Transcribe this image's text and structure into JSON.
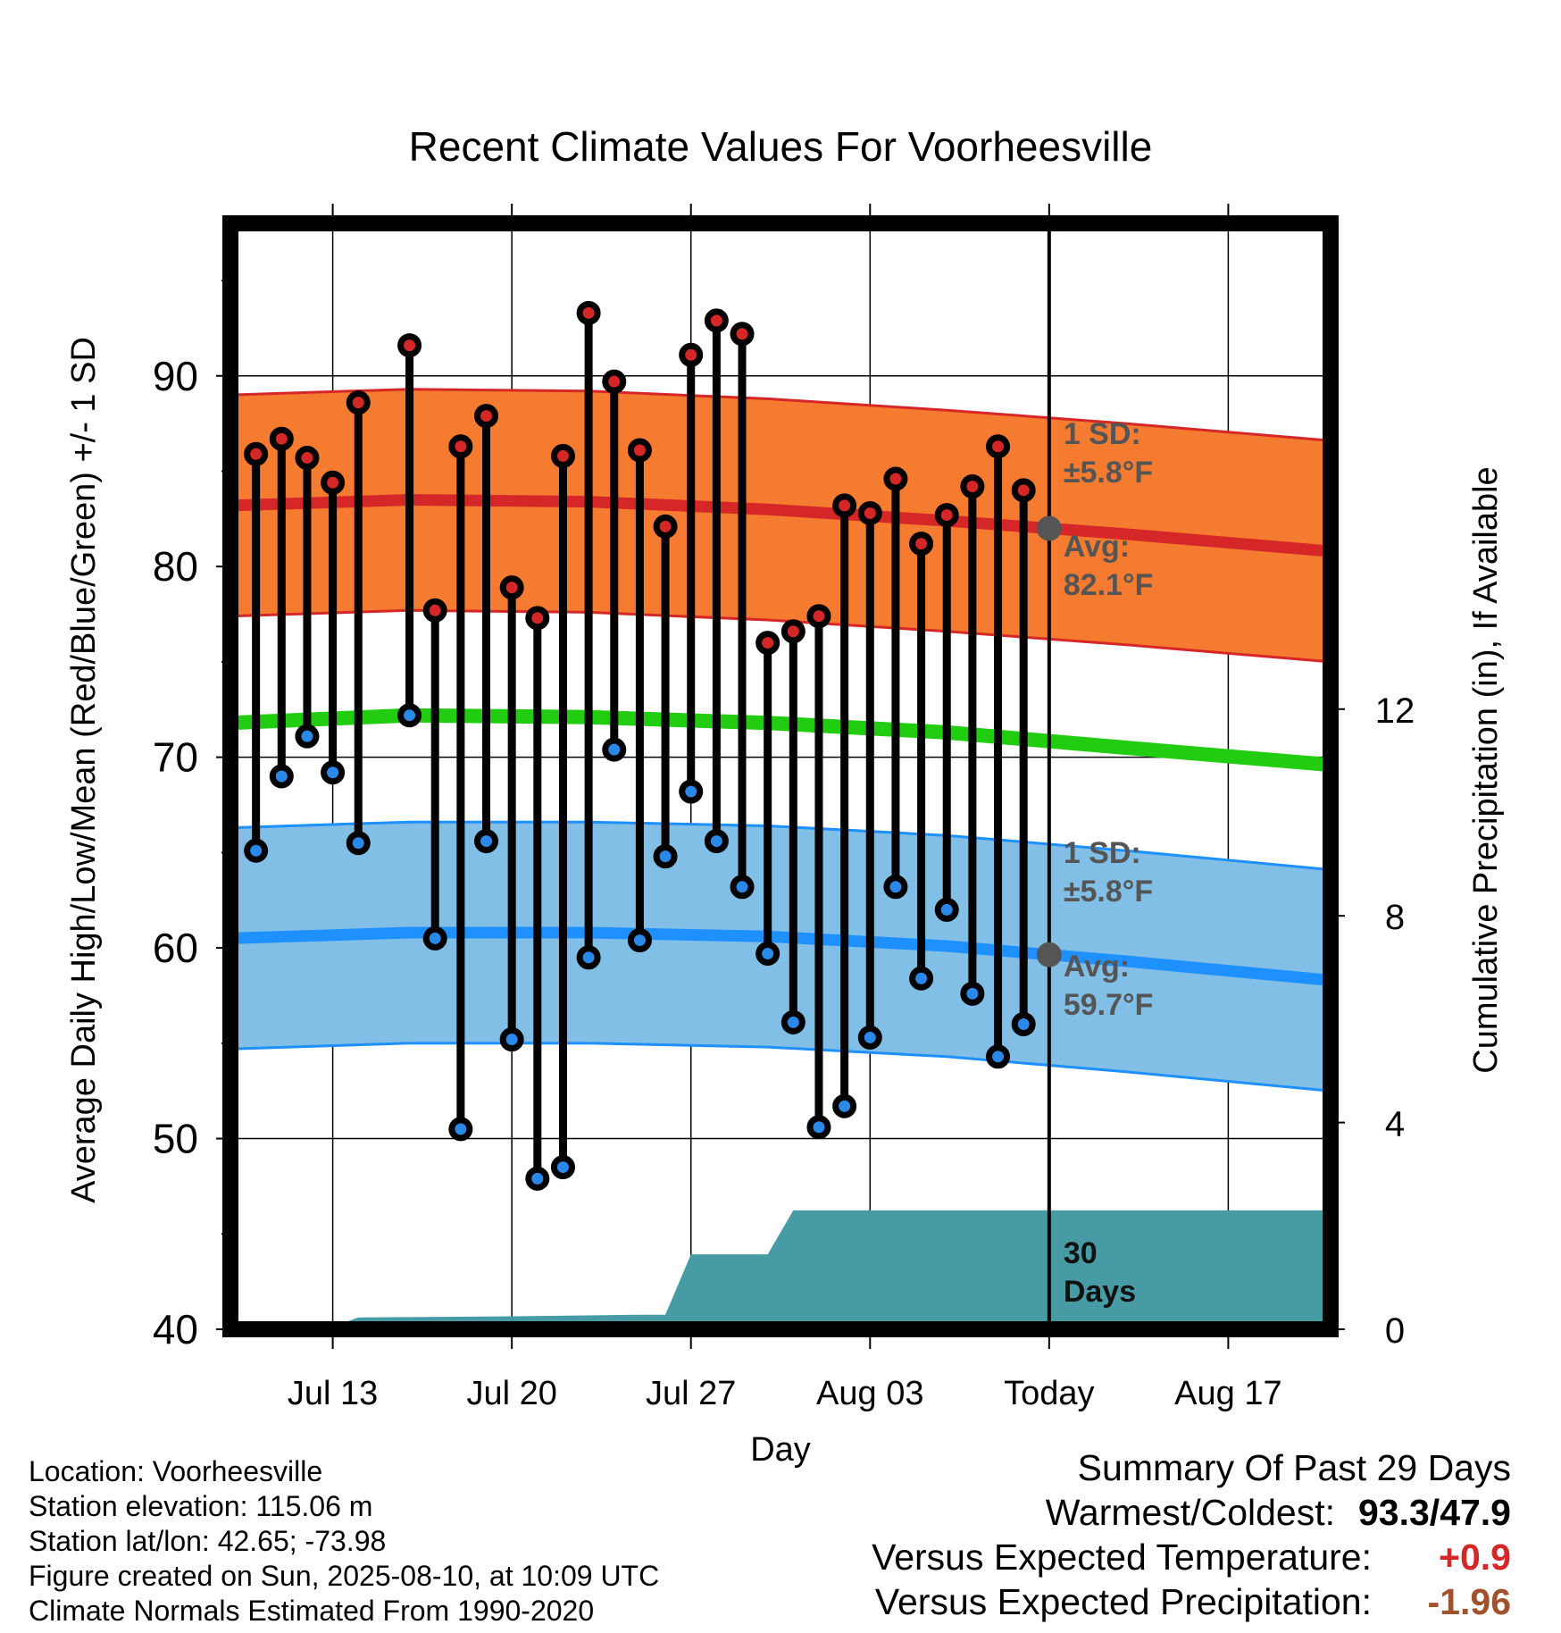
{
  "chart_data": {
    "type": "line",
    "title": "Recent Climate Values For Voorheesville",
    "xlabel": "Day",
    "ylabel": "Average Daily High/Low/Mean (Red/Blue/Green) +/- 1 SD",
    "y2label": "Cumulative Precipitation (in), If Available",
    "ylim": [
      40,
      98
    ],
    "y2lim": [
      0,
      21.4
    ],
    "yticks": [
      "40",
      "50",
      "60",
      "70",
      "80",
      "90"
    ],
    "y2ticks": [
      "0",
      "4",
      "8",
      "12"
    ],
    "xlim": [
      "2025-07-09",
      "2025-08-21"
    ],
    "xticks": [
      {
        "date": "2025-07-13",
        "label": "Jul 13"
      },
      {
        "date": "2025-07-20",
        "label": "Jul 20"
      },
      {
        "date": "2025-07-27",
        "label": "Jul 27"
      },
      {
        "date": "2025-08-03",
        "label": "Aug 03"
      },
      {
        "date": "2025-08-10",
        "label": "Today"
      },
      {
        "date": "2025-08-17",
        "label": "Aug 17"
      }
    ],
    "today": "2025-08-10",
    "grid": true,
    "daily_observations": {
      "dates": [
        "2025-07-10",
        "2025-07-11",
        "2025-07-12",
        "2025-07-13",
        "2025-07-14",
        "2025-07-16",
        "2025-07-17",
        "2025-07-18",
        "2025-07-19",
        "2025-07-20",
        "2025-07-21",
        "2025-07-22",
        "2025-07-23",
        "2025-07-24",
        "2025-07-25",
        "2025-07-26",
        "2025-07-27",
        "2025-07-28",
        "2025-07-29",
        "2025-07-30",
        "2025-07-31",
        "2025-08-01",
        "2025-08-02",
        "2025-08-03",
        "2025-08-04",
        "2025-08-05",
        "2025-08-06",
        "2025-08-07",
        "2025-08-08",
        "2025-08-09"
      ],
      "high": [
        85.9,
        86.7,
        85.7,
        84.4,
        88.6,
        91.6,
        77.7,
        86.3,
        87.9,
        78.9,
        77.3,
        85.8,
        93.3,
        89.7,
        86.1,
        82.1,
        91.1,
        92.9,
        92.2,
        76.0,
        76.6,
        77.4,
        83.2,
        82.8,
        84.6,
        81.2,
        82.7,
        84.2,
        86.3,
        84.0
      ],
      "low": [
        65.1,
        69.0,
        71.1,
        69.2,
        65.5,
        72.2,
        60.5,
        50.5,
        65.6,
        55.2,
        47.9,
        48.5,
        59.5,
        70.4,
        60.4,
        64.8,
        68.2,
        65.6,
        63.2,
        59.7,
        56.1,
        50.6,
        51.7,
        55.3,
        63.2,
        58.4,
        62.0,
        57.6,
        54.3,
        56.0
      ]
    },
    "normals": {
      "dates": [
        "2025-07-09",
        "2025-07-16",
        "2025-07-23",
        "2025-07-30",
        "2025-08-06",
        "2025-08-13",
        "2025-08-21"
      ],
      "high_mean": [
        83.2,
        83.5,
        83.4,
        83.0,
        82.4,
        81.7,
        80.8
      ],
      "low_mean": [
        60.5,
        60.8,
        60.8,
        60.6,
        60.1,
        59.3,
        58.3
      ],
      "mean": [
        71.8,
        72.2,
        72.1,
        71.8,
        71.3,
        70.5,
        69.6
      ],
      "sd": 5.8
    },
    "precip_cumulative": {
      "dates": [
        "2025-07-09",
        "2025-07-12",
        "2025-07-13",
        "2025-07-14",
        "2025-07-20",
        "2025-07-25",
        "2025-07-26",
        "2025-07-27",
        "2025-07-30",
        "2025-07-31",
        "2025-08-21"
      ],
      "values": [
        0.0,
        0.0,
        0.05,
        0.23,
        0.25,
        0.28,
        0.28,
        1.45,
        1.45,
        2.3,
        2.3
      ]
    },
    "annotations": {
      "high_sd": "1 SD:",
      "high_sd_value": "±5.8°F",
      "high_avg": "Avg:",
      "high_avg_value": "82.1°F",
      "low_sd": "1 SD:",
      "low_sd_value": "±5.8°F",
      "low_avg": "Avg:",
      "low_avg_value": "59.7°F",
      "precip_days_1": "30",
      "precip_days_2": "Days"
    },
    "colors": {
      "high_band": "#f47b2f",
      "high_line": "#d62728",
      "low_band": "#81bfe6",
      "low_line": "#1e90ff",
      "mean_line": "#22cc11",
      "precip": "#479ba4",
      "high_marker": "#d62728",
      "low_marker": "#2a88e8",
      "annotation": "#555555"
    }
  },
  "info": {
    "location": "Location: Voorheesville",
    "elevation": "Station elevation: 115.06 m",
    "latlon": "Station lat/lon: 42.65; -73.98",
    "created": "Figure created on Sun, 2025-08-10, at 10:09 UTC",
    "normals": "Climate Normals Estimated From 1990-2020"
  },
  "summary": {
    "title": "Summary Of Past 29 Days",
    "warm_cold_label": "Warmest/Coldest:",
    "warm_cold_value": "93.3/47.9",
    "temp_label": "Versus Expected Temperature:",
    "temp_value": "+0.9",
    "temp_color": "#d62728",
    "precip_label": "Versus Expected Precipitation:",
    "precip_value": "-1.96",
    "precip_color": "#a0522d"
  }
}
